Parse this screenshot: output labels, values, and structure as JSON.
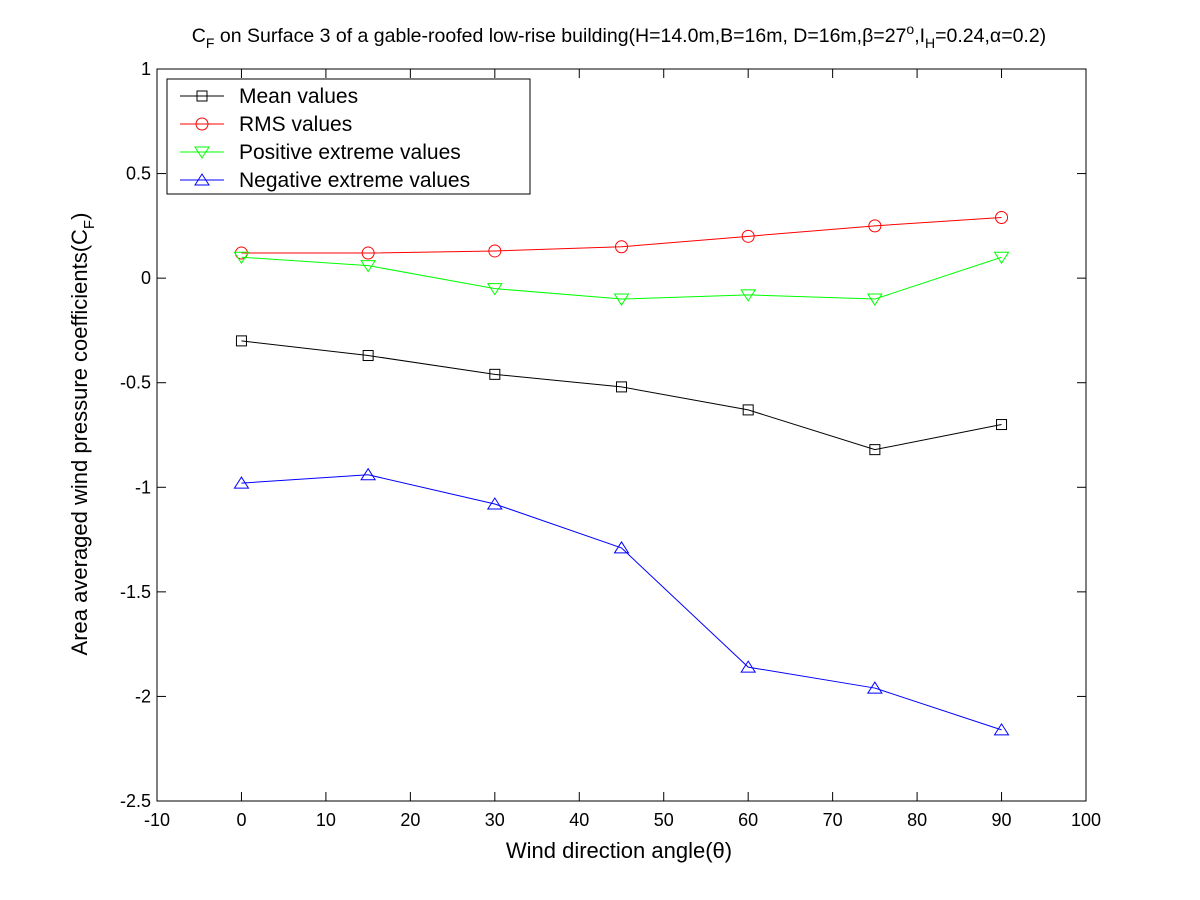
{
  "chart_data": {
    "type": "line",
    "title": "C_F on Surface 3 of a gable-roofed low-rise building(H=14.0m,B=16m, D=16m,β=27°,I_H=0.24,α=0.2)",
    "title_parts": {
      "cf_main": "C",
      "cf_sub": "F",
      "body_1": " on Surface 3 of a gable-roofed low-rise building(H=14.0m,B=16m, D=16m,β=27",
      "deg": "o",
      "body_2": ",I",
      "ih_sub": "H",
      "body_3": "=0.24,α=0.2)"
    },
    "xlabel": "Wind direction angle(θ)",
    "ylabel": "Area averaged wind pressure coefficients(C_F)",
    "ylabel_parts": {
      "main": "Area averaged wind pressure coefficients(C",
      "sub": "F",
      "close": ")"
    },
    "xlim": [
      -10,
      100
    ],
    "ylim": [
      -2.5,
      1
    ],
    "xticks": [
      -10,
      0,
      10,
      20,
      30,
      40,
      50,
      60,
      70,
      80,
      90,
      100
    ],
    "yticks": [
      -2.5,
      -2,
      -1.5,
      -1,
      -0.5,
      0,
      0.5,
      1
    ],
    "xtick_labels": [
      "-10",
      "0",
      "10",
      "20",
      "30",
      "40",
      "50",
      "60",
      "70",
      "80",
      "90",
      "100"
    ],
    "ytick_labels": [
      "-2.5",
      "-2",
      "-1.5",
      "-1",
      "-0.5",
      "0",
      "0.5",
      "1"
    ],
    "grid": false,
    "legend_position": "top-left",
    "x": [
      0,
      15,
      30,
      45,
      60,
      75,
      90
    ],
    "series": [
      {
        "name": "Mean values",
        "marker": "square",
        "color": "#000000",
        "values": [
          -0.3,
          -0.37,
          -0.46,
          -0.52,
          -0.63,
          -0.82,
          -0.7
        ]
      },
      {
        "name": "RMS values",
        "marker": "circle",
        "color": "#ff0000",
        "values": [
          0.12,
          0.12,
          0.13,
          0.15,
          0.2,
          0.25,
          0.29
        ]
      },
      {
        "name": "Positive extreme values",
        "marker": "triangle-down",
        "color": "#00ff00",
        "values": [
          0.1,
          0.06,
          -0.05,
          -0.1,
          -0.08,
          -0.1,
          0.1
        ]
      },
      {
        "name": "Negative extreme values",
        "marker": "triangle-up",
        "color": "#0000ff",
        "values": [
          -0.98,
          -0.94,
          -1.08,
          -1.29,
          -1.86,
          -1.96,
          -2.16
        ]
      }
    ]
  }
}
